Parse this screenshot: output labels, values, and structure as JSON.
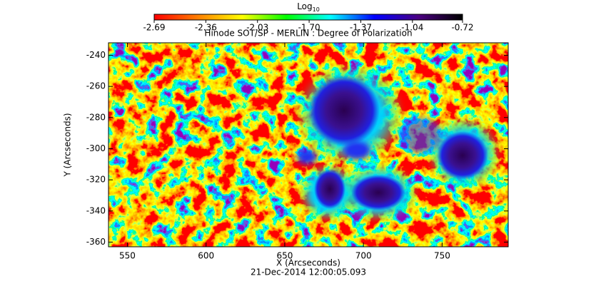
{
  "chart_data": {
    "type": "image",
    "title": "Hinode SOT/SP - MERLIN : Degree of Polarization",
    "subtitle": "21-Dec-2014 12:00:05.093",
    "xlabel": "X (Arcseconds)",
    "ylabel": "Y (Arcseconds)",
    "xlim": [
      538,
      792
    ],
    "ylim": [
      -363,
      -232
    ],
    "xticks": [
      550,
      600,
      650,
      700,
      750
    ],
    "yticks": [
      -240,
      -260,
      -280,
      -300,
      -320,
      -340,
      -360
    ],
    "colorbar": {
      "label": "Log",
      "label_subscript": "10",
      "lim": [
        -2.69,
        -0.72
      ],
      "ticks": [
        -2.69,
        -2.36,
        -2.03,
        {
          "value": -1.7,
          "label": "-1.70"
        },
        -1.37,
        -1.04,
        -0.72
      ],
      "colormap": [
        "#ff0000",
        "#ff8000",
        "#ffff00",
        "#00ff00",
        "#00ffff",
        "#0000ff",
        "#4b0082",
        "#000000"
      ]
    }
  }
}
